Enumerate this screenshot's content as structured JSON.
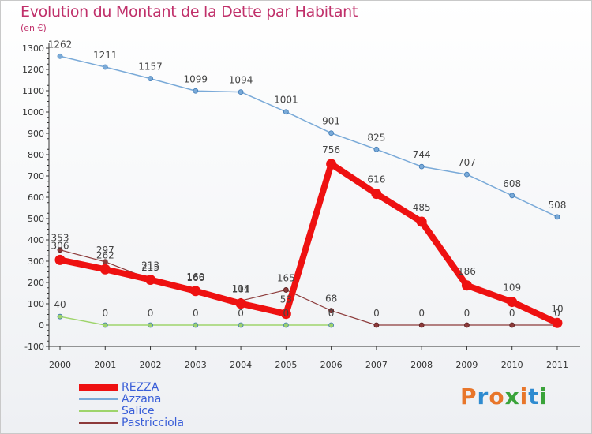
{
  "title": "Evolution du Montant de la Dette par Habitant",
  "subtitle": "(en €)",
  "brand": {
    "text": "Proxiti",
    "colors": [
      "#e8762a",
      "#2e8bd0",
      "#e8762a",
      "#3aa33a",
      "#e8762a",
      "#2e8bd0",
      "#3aa33a"
    ]
  },
  "chart_data": {
    "type": "line",
    "x": [
      "2000",
      "2001",
      "2002",
      "2003",
      "2004",
      "2005",
      "2006",
      "2007",
      "2008",
      "2009",
      "2010",
      "2011"
    ],
    "ylim": [
      -100,
      1300
    ],
    "yticks": [
      -100,
      0,
      100,
      200,
      300,
      400,
      500,
      600,
      700,
      800,
      900,
      1000,
      1100,
      1200,
      1300
    ],
    "grid": false,
    "legend_position": "bottom-left",
    "series": [
      {
        "name": "REZZA",
        "color": "#ee1111",
        "width": 8,
        "values": [
          306,
          262,
          213,
          160,
          101,
          53,
          756,
          616,
          485,
          186,
          109,
          10
        ],
        "labels": [
          "306",
          "262",
          "213",
          "160",
          "101",
          "53",
          "756",
          "616",
          "485",
          "186",
          "109",
          "10"
        ]
      },
      {
        "name": "Azzana",
        "color": "#7aaad8",
        "width": 1.5,
        "values": [
          1262,
          1211,
          1157,
          1099,
          1094,
          1001,
          901,
          825,
          744,
          707,
          608,
          508
        ],
        "labels": [
          "1262",
          "1211",
          "1157",
          "1099",
          "1094",
          "1001",
          "901",
          "825",
          "744",
          "707",
          "608",
          "508"
        ]
      },
      {
        "name": "Salice",
        "color": "#9ed46b",
        "width": 1.5,
        "values": [
          40,
          0,
          0,
          0,
          0,
          0,
          0,
          null,
          null,
          null,
          null,
          null
        ],
        "labels": [
          "40",
          "0",
          "0",
          "0",
          "0",
          "0",
          "0",
          "",
          "",
          "",
          "",
          ""
        ]
      },
      {
        "name": "Pastricciola",
        "color": "#8c3a3a",
        "width": 1.2,
        "values": [
          353,
          297,
          215,
          166,
          114,
          165,
          68,
          0,
          0,
          0,
          0,
          0
        ],
        "labels": [
          "353",
          "297",
          "215",
          "166",
          "114",
          "165",
          "68",
          "0",
          "0",
          "0",
          "0",
          "0"
        ]
      }
    ]
  }
}
